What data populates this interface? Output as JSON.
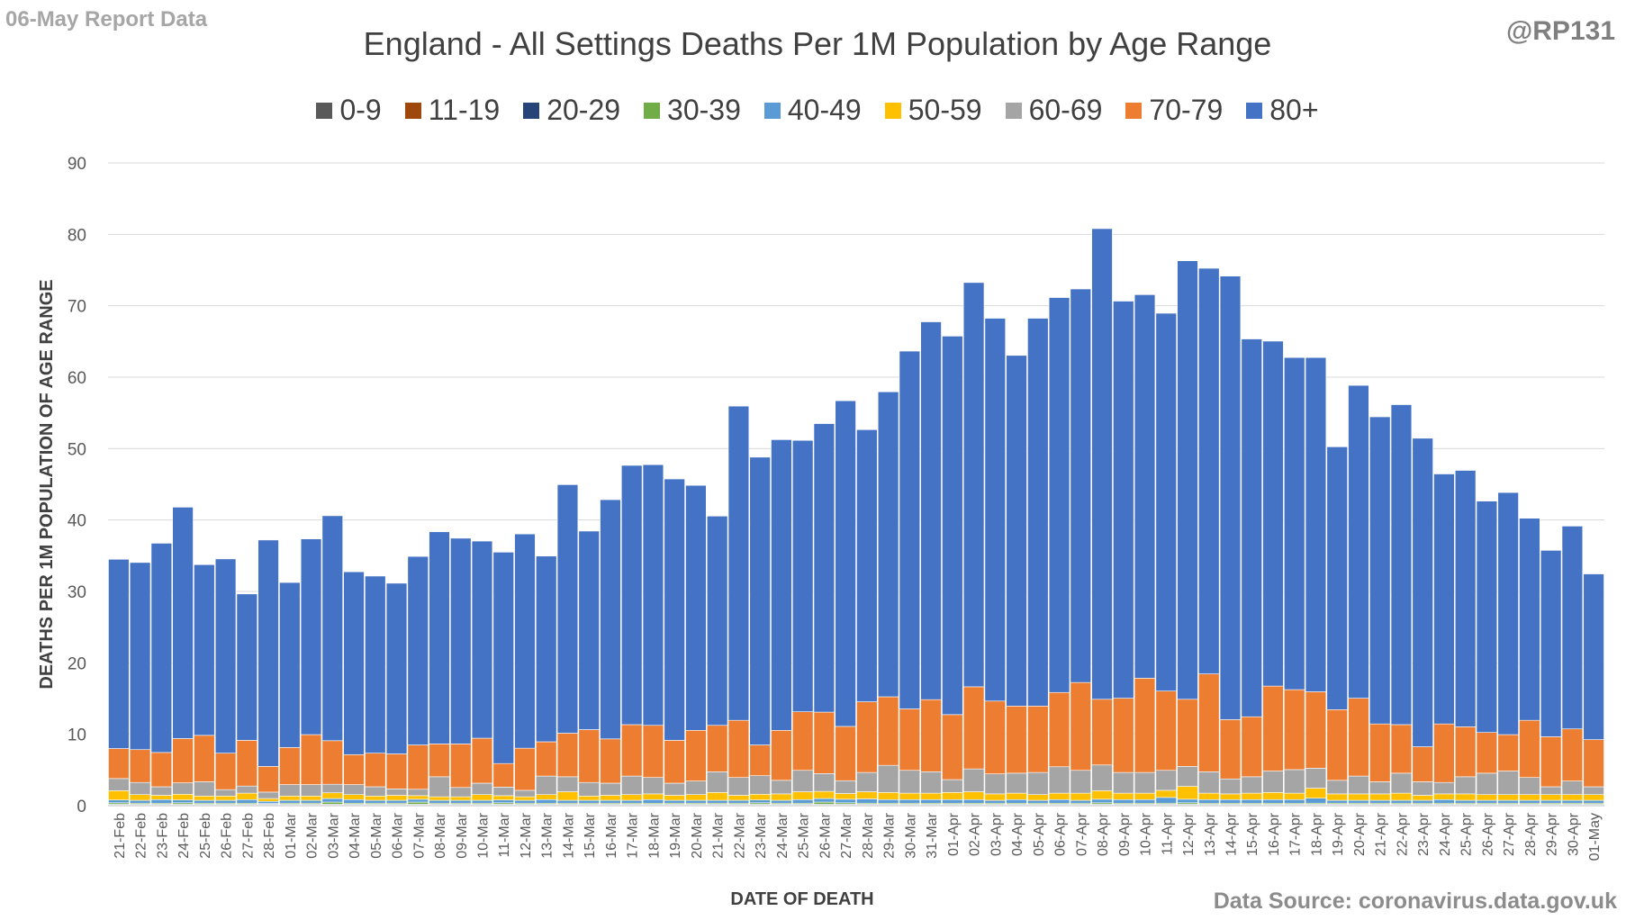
{
  "header": {
    "report_label": "06-May Report Data",
    "handle": "@RP131",
    "source": "Data Source: coronavirus.data.gov.uk"
  },
  "chart_data": {
    "type": "bar",
    "stacked": true,
    "title": "England - All Settings Deaths Per 1M Population by Age Range",
    "xlabel": "DATE OF DEATH",
    "ylabel": "DEATHS PER 1M POPULATION OF AGE RANGE",
    "ylim": [
      0,
      90
    ],
    "yticks": [
      0,
      10,
      20,
      30,
      40,
      50,
      60,
      70,
      80,
      90
    ],
    "grid": true,
    "legend_position": "top",
    "categories": [
      "21-Feb",
      "22-Feb",
      "23-Feb",
      "24-Feb",
      "25-Feb",
      "26-Feb",
      "27-Feb",
      "28-Feb",
      "01-Mar",
      "02-Mar",
      "03-Mar",
      "04-Mar",
      "05-Mar",
      "06-Mar",
      "07-Mar",
      "08-Mar",
      "09-Mar",
      "10-Mar",
      "11-Mar",
      "12-Mar",
      "13-Mar",
      "14-Mar",
      "15-Mar",
      "16-Mar",
      "17-Mar",
      "18-Mar",
      "19-Mar",
      "20-Mar",
      "21-Mar",
      "22-Mar",
      "23-Mar",
      "24-Mar",
      "25-Mar",
      "26-Mar",
      "27-Mar",
      "28-Mar",
      "29-Mar",
      "30-Mar",
      "31-Mar",
      "01-Apr",
      "02-Apr",
      "03-Apr",
      "04-Apr",
      "05-Apr",
      "06-Apr",
      "07-Apr",
      "08-Apr",
      "09-Apr",
      "10-Apr",
      "11-Apr",
      "12-Apr",
      "13-Apr",
      "14-Apr",
      "15-Apr",
      "16-Apr",
      "17-Apr",
      "18-Apr",
      "19-Apr",
      "20-Apr",
      "21-Apr",
      "22-Apr",
      "23-Apr",
      "24-Apr",
      "25-Apr",
      "26-Apr",
      "27-Apr",
      "28-Apr",
      "29-Apr",
      "30-Apr",
      "01-May"
    ],
    "series": [
      {
        "name": "0-9",
        "color": "#595959",
        "values": [
          0.05,
          0.05,
          0.05,
          0.05,
          0.05,
          0.05,
          0.05,
          0.05,
          0.05,
          0.05,
          0.05,
          0.05,
          0.05,
          0.05,
          0.05,
          0.05,
          0.05,
          0.05,
          0.05,
          0.05,
          0.05,
          0.05,
          0.05,
          0.05,
          0.05,
          0.05,
          0.05,
          0.05,
          0.05,
          0.05,
          0.05,
          0.05,
          0.05,
          0.05,
          0.05,
          0.05,
          0.05,
          0.05,
          0.05,
          0.05,
          0.05,
          0.05,
          0.05,
          0.05,
          0.05,
          0.05,
          0.05,
          0.05,
          0.05,
          0.05,
          0.05,
          0.05,
          0.05,
          0.05,
          0.05,
          0.05,
          0.05,
          0.05,
          0.05,
          0.05,
          0.05,
          0.05,
          0.05,
          0.05,
          0.05,
          0.05,
          0.05,
          0.05,
          0.05,
          0.05
        ]
      },
      {
        "name": "11-19",
        "color": "#9e480e",
        "values": [
          0.05,
          0.05,
          0.05,
          0.05,
          0.05,
          0.05,
          0.05,
          0.05,
          0.05,
          0.05,
          0.05,
          0.05,
          0.05,
          0.05,
          0.05,
          0.05,
          0.05,
          0.05,
          0.05,
          0.05,
          0.05,
          0.05,
          0.05,
          0.05,
          0.05,
          0.05,
          0.05,
          0.05,
          0.05,
          0.05,
          0.05,
          0.05,
          0.05,
          0.05,
          0.05,
          0.05,
          0.05,
          0.05,
          0.05,
          0.05,
          0.05,
          0.05,
          0.05,
          0.05,
          0.05,
          0.05,
          0.05,
          0.05,
          0.05,
          0.05,
          0.05,
          0.05,
          0.05,
          0.05,
          0.05,
          0.05,
          0.05,
          0.05,
          0.05,
          0.05,
          0.05,
          0.05,
          0.05,
          0.05,
          0.05,
          0.05,
          0.05,
          0.05,
          0.05,
          0.05
        ]
      },
      {
        "name": "20-29",
        "color": "#264478",
        "values": [
          0.1,
          0.1,
          0.1,
          0.1,
          0.1,
          0.1,
          0.1,
          0.1,
          0.1,
          0.1,
          0.1,
          0.1,
          0.1,
          0.1,
          0.1,
          0.1,
          0.1,
          0.1,
          0.1,
          0.1,
          0.1,
          0.1,
          0.1,
          0.1,
          0.1,
          0.1,
          0.1,
          0.1,
          0.1,
          0.1,
          0.1,
          0.1,
          0.1,
          0.1,
          0.1,
          0.1,
          0.1,
          0.1,
          0.1,
          0.1,
          0.1,
          0.1,
          0.1,
          0.1,
          0.1,
          0.1,
          0.1,
          0.1,
          0.1,
          0.1,
          0.1,
          0.1,
          0.1,
          0.1,
          0.1,
          0.1,
          0.1,
          0.1,
          0.1,
          0.1,
          0.1,
          0.1,
          0.1,
          0.1,
          0.1,
          0.1,
          0.1,
          0.1,
          0.1,
          0.1
        ]
      },
      {
        "name": "30-39",
        "color": "#70ad47",
        "values": [
          0.2,
          0.15,
          0.15,
          0.2,
          0.15,
          0.15,
          0.15,
          0.1,
          0.15,
          0.15,
          0.3,
          0.15,
          0.15,
          0.15,
          0.3,
          0.15,
          0.15,
          0.15,
          0.2,
          0.15,
          0.15,
          0.15,
          0.15,
          0.15,
          0.15,
          0.15,
          0.15,
          0.15,
          0.15,
          0.15,
          0.2,
          0.15,
          0.15,
          0.3,
          0.2,
          0.15,
          0.15,
          0.15,
          0.15,
          0.15,
          0.15,
          0.15,
          0.15,
          0.15,
          0.15,
          0.15,
          0.2,
          0.15,
          0.15,
          0.15,
          0.2,
          0.15,
          0.15,
          0.15,
          0.15,
          0.15,
          0.15,
          0.15,
          0.15,
          0.15,
          0.15,
          0.15,
          0.15,
          0.15,
          0.15,
          0.15,
          0.15,
          0.15,
          0.15,
          0.15
        ]
      },
      {
        "name": "40-49",
        "color": "#5b9bd5",
        "values": [
          0.4,
          0.4,
          0.5,
          0.4,
          0.4,
          0.4,
          0.5,
          0.3,
          0.4,
          0.4,
          0.5,
          0.5,
          0.4,
          0.4,
          0.4,
          0.4,
          0.4,
          0.4,
          0.4,
          0.4,
          0.5,
          0.4,
          0.4,
          0.4,
          0.4,
          0.5,
          0.4,
          0.4,
          0.4,
          0.4,
          0.4,
          0.4,
          0.5,
          0.5,
          0.5,
          0.6,
          0.5,
          0.5,
          0.5,
          0.5,
          0.5,
          0.4,
          0.5,
          0.4,
          0.5,
          0.4,
          0.5,
          0.5,
          0.5,
          0.8,
          0.5,
          0.5,
          0.5,
          0.5,
          0.5,
          0.5,
          0.7,
          0.4,
          0.4,
          0.4,
          0.4,
          0.4,
          0.5,
          0.4,
          0.4,
          0.4,
          0.4,
          0.4,
          0.4,
          0.4
        ]
      },
      {
        "name": "50-59",
        "color": "#ffc000",
        "values": [
          1.3,
          0.8,
          0.6,
          0.8,
          0.6,
          0.6,
          0.9,
          0.4,
          0.6,
          0.6,
          0.8,
          0.7,
          0.6,
          0.7,
          0.5,
          0.5,
          0.5,
          0.8,
          0.6,
          0.5,
          0.7,
          1.2,
          0.6,
          0.7,
          0.8,
          0.8,
          0.7,
          0.8,
          1.1,
          0.7,
          0.8,
          0.9,
          1.1,
          1.0,
          0.8,
          1.0,
          1.0,
          0.9,
          0.9,
          1.0,
          1.1,
          0.9,
          0.9,
          0.8,
          0.9,
          1.0,
          1.2,
          0.9,
          0.9,
          1.0,
          1.8,
          0.9,
          0.8,
          0.9,
          1.0,
          0.9,
          1.4,
          0.9,
          0.9,
          0.9,
          1.0,
          0.7,
          0.8,
          0.9,
          0.8,
          0.8,
          0.8,
          0.8,
          0.8,
          0.8
        ]
      },
      {
        "name": "60-69",
        "color": "#a5a5a5",
        "values": [
          1.7,
          1.7,
          1.2,
          1.6,
          2.0,
          0.9,
          1.0,
          0.9,
          1.6,
          1.6,
          1.2,
          1.4,
          1.3,
          0.9,
          0.9,
          2.8,
          1.3,
          1.6,
          1.2,
          0.9,
          2.6,
          2.1,
          1.9,
          1.7,
          2.6,
          2.3,
          1.7,
          1.9,
          2.9,
          2.5,
          2.6,
          1.9,
          3.0,
          2.5,
          1.8,
          2.7,
          3.8,
          3.2,
          3.0,
          1.8,
          3.2,
          2.8,
          2.8,
          3.1,
          3.7,
          3.2,
          3.6,
          2.9,
          2.9,
          2.8,
          2.8,
          3.0,
          2.1,
          2.3,
          3.0,
          3.3,
          2.8,
          1.9,
          2.5,
          1.7,
          2.8,
          1.9,
          1.6,
          2.4,
          3.0,
          3.3,
          2.4,
          1.1,
          1.9,
          1.1
        ]
      },
      {
        "name": "70-79",
        "color": "#ed7d31",
        "values": [
          4.2,
          4.6,
          4.8,
          6.2,
          6.5,
          5.1,
          6.4,
          3.6,
          5.2,
          7.0,
          6.1,
          4.2,
          4.7,
          4.9,
          6.2,
          4.6,
          6.1,
          6.3,
          3.3,
          5.9,
          4.8,
          6.1,
          7.4,
          6.2,
          7.2,
          7.3,
          6.0,
          7.1,
          6.5,
          8.0,
          4.3,
          7.0,
          8.2,
          8.6,
          7.6,
          9.9,
          9.6,
          8.6,
          10.1,
          9.1,
          11.5,
          10.2,
          9.4,
          9.3,
          10.4,
          12.3,
          9.2,
          10.4,
          13.2,
          11.1,
          9.4,
          13.7,
          8.3,
          8.4,
          11.9,
          11.2,
          10.7,
          9.9,
          10.9,
          8.1,
          6.8,
          4.9,
          8.2,
          7.0,
          5.7,
          5.1,
          8.0,
          7.0,
          7.3,
          6.6
        ]
      },
      {
        "name": "80+",
        "color": "#4472c4",
        "values": [
          26.5,
          26.2,
          29.3,
          32.4,
          23.9,
          27.2,
          20.5,
          31.7,
          23.1,
          27.4,
          31.5,
          25.6,
          24.8,
          23.9,
          26.4,
          29.7,
          28.8,
          27.6,
          29.6,
          30.0,
          26.0,
          34.8,
          27.8,
          33.5,
          36.3,
          36.5,
          36.6,
          34.3,
          29.3,
          44.0,
          40.3,
          40.7,
          38.0,
          40.4,
          45.6,
          38.1,
          42.7,
          50.1,
          52.9,
          53.0,
          56.6,
          53.6,
          49.1,
          54.3,
          55.3,
          55.1,
          65.9,
          55.6,
          53.7,
          52.9,
          61.4,
          56.8,
          62.1,
          52.9,
          48.3,
          46.5,
          46.8,
          36.8,
          43.8,
          43.0,
          44.8,
          43.2,
          35.0,
          35.9,
          32.4,
          33.9,
          28.3,
          26.1,
          28.4,
          23.2
        ]
      }
    ]
  }
}
